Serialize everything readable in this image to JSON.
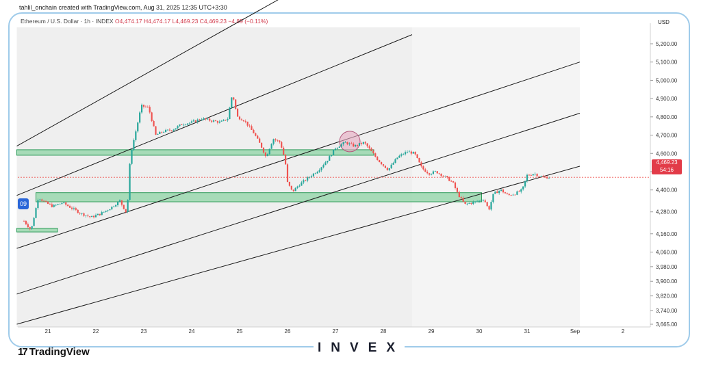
{
  "header": {
    "author": "tahlil_onchain created with TradingView.com, Aug 31, 2025 12:35 UTC+3:30",
    "symbol": "Ethereum / U.S. Dollar · 1h · INDEX",
    "ohlc": "O4,474.17 H4,474.17 L4,469.23 C4,469.23 −4.89 (−0.11%)",
    "currency": "USD"
  },
  "last_price": {
    "value": "4,469.23",
    "countdown": "54:16",
    "color": "#e23b48"
  },
  "badge": "09",
  "footer": {
    "tradingview_logo": "TradingView",
    "brand": "INVEX"
  },
  "colors": {
    "up": "#26a69a",
    "down": "#ef5350",
    "zone": "#8fd4a6",
    "zone_border": "#2e9b5a",
    "channel_line": "#1a1a1a",
    "frame": "#9fcbea",
    "circle": "#e6a9bf"
  },
  "chart_data": {
    "type": "line",
    "subtype": "candlestick",
    "x_axis_labels": [
      "21",
      "22",
      "23",
      "24",
      "25",
      "26",
      "27",
      "28",
      "29",
      "30",
      "31",
      "Sep",
      "2"
    ],
    "y_axis_labels": [
      "5,200.00",
      "5,100.00",
      "5,000.00",
      "4,900.00",
      "4,800.00",
      "4,700.00",
      "4,600.00",
      "4,500.00",
      "4,400.00",
      "4,280.00",
      "4,160.00",
      "4,060.00",
      "3,980.00",
      "3,900.00",
      "3,820.00",
      "3,740.00",
      "3,665.00"
    ],
    "ylim": [
      3665,
      5200
    ],
    "price_path": [
      [
        20.5,
        4230
      ],
      [
        20.65,
        4180
      ],
      [
        20.8,
        4360
      ],
      [
        20.95,
        4330
      ],
      [
        21.1,
        4310
      ],
      [
        21.3,
        4330
      ],
      [
        21.5,
        4300
      ],
      [
        21.7,
        4270
      ],
      [
        21.9,
        4250
      ],
      [
        22.1,
        4270
      ],
      [
        22.3,
        4300
      ],
      [
        22.5,
        4340
      ],
      [
        22.65,
        4270
      ],
      [
        22.72,
        4590
      ],
      [
        22.85,
        4740
      ],
      [
        22.95,
        4860
      ],
      [
        23.1,
        4850
      ],
      [
        23.25,
        4700
      ],
      [
        23.4,
        4720
      ],
      [
        23.6,
        4730
      ],
      [
        23.8,
        4760
      ],
      [
        24.0,
        4770
      ],
      [
        24.2,
        4790
      ],
      [
        24.4,
        4780
      ],
      [
        24.6,
        4770
      ],
      [
        24.75,
        4790
      ],
      [
        24.85,
        4930
      ],
      [
        24.95,
        4800
      ],
      [
        25.1,
        4780
      ],
      [
        25.3,
        4710
      ],
      [
        25.45,
        4640
      ],
      [
        25.55,
        4580
      ],
      [
        25.7,
        4680
      ],
      [
        25.85,
        4660
      ],
      [
        25.95,
        4560
      ],
      [
        26.0,
        4440
      ],
      [
        26.1,
        4390
      ],
      [
        26.25,
        4430
      ],
      [
        26.45,
        4470
      ],
      [
        26.65,
        4510
      ],
      [
        26.85,
        4570
      ],
      [
        27.0,
        4630
      ],
      [
        27.2,
        4660
      ],
      [
        27.4,
        4640
      ],
      [
        27.6,
        4660
      ],
      [
        27.75,
        4610
      ],
      [
        27.9,
        4560
      ],
      [
        28.1,
        4510
      ],
      [
        28.3,
        4580
      ],
      [
        28.5,
        4610
      ],
      [
        28.65,
        4600
      ],
      [
        28.8,
        4520
      ],
      [
        28.95,
        4490
      ],
      [
        29.1,
        4500
      ],
      [
        29.3,
        4470
      ],
      [
        29.45,
        4440
      ],
      [
        29.55,
        4380
      ],
      [
        29.7,
        4320
      ],
      [
        29.85,
        4330
      ],
      [
        30.0,
        4340
      ],
      [
        30.1,
        4350
      ],
      [
        30.2,
        4290
      ],
      [
        30.3,
        4380
      ],
      [
        30.45,
        4400
      ],
      [
        30.6,
        4370
      ],
      [
        30.75,
        4380
      ],
      [
        30.9,
        4400
      ],
      [
        31.0,
        4480
      ],
      [
        31.15,
        4490
      ],
      [
        31.3,
        4470
      ],
      [
        31.5,
        4469
      ]
    ],
    "last_price": 4469.23,
    "support_zones": [
      {
        "from": 20.35,
        "to": 27.8,
        "low": 4590,
        "high": 4620
      },
      {
        "from": 20.75,
        "to": 30.05,
        "low": 4335,
        "high": 4385
      },
      {
        "from": 20.35,
        "to": 21.2,
        "low": 4170,
        "high": 4190
      }
    ],
    "channel_lines": [
      {
        "from": [
          20.35,
          4640
        ],
        "to": [
          27.5,
          5690
        ]
      },
      {
        "from": [
          20.35,
          4370
        ],
        "to": [
          28.6,
          5250
        ]
      },
      {
        "from": [
          20.35,
          4080
        ],
        "to": [
          32.1,
          5100
        ]
      },
      {
        "from": [
          20.35,
          3830
        ],
        "to": [
          32.1,
          4820
        ]
      },
      {
        "from": [
          20.35,
          3665
        ],
        "to": [
          32.1,
          4530
        ]
      }
    ],
    "shaded_areas": [
      {
        "from": 20.35,
        "to": 28.6
      },
      {
        "from": 28.6,
        "to": 32.1
      }
    ],
    "highlight_circle": {
      "x": 27.3,
      "y": 4665
    }
  }
}
